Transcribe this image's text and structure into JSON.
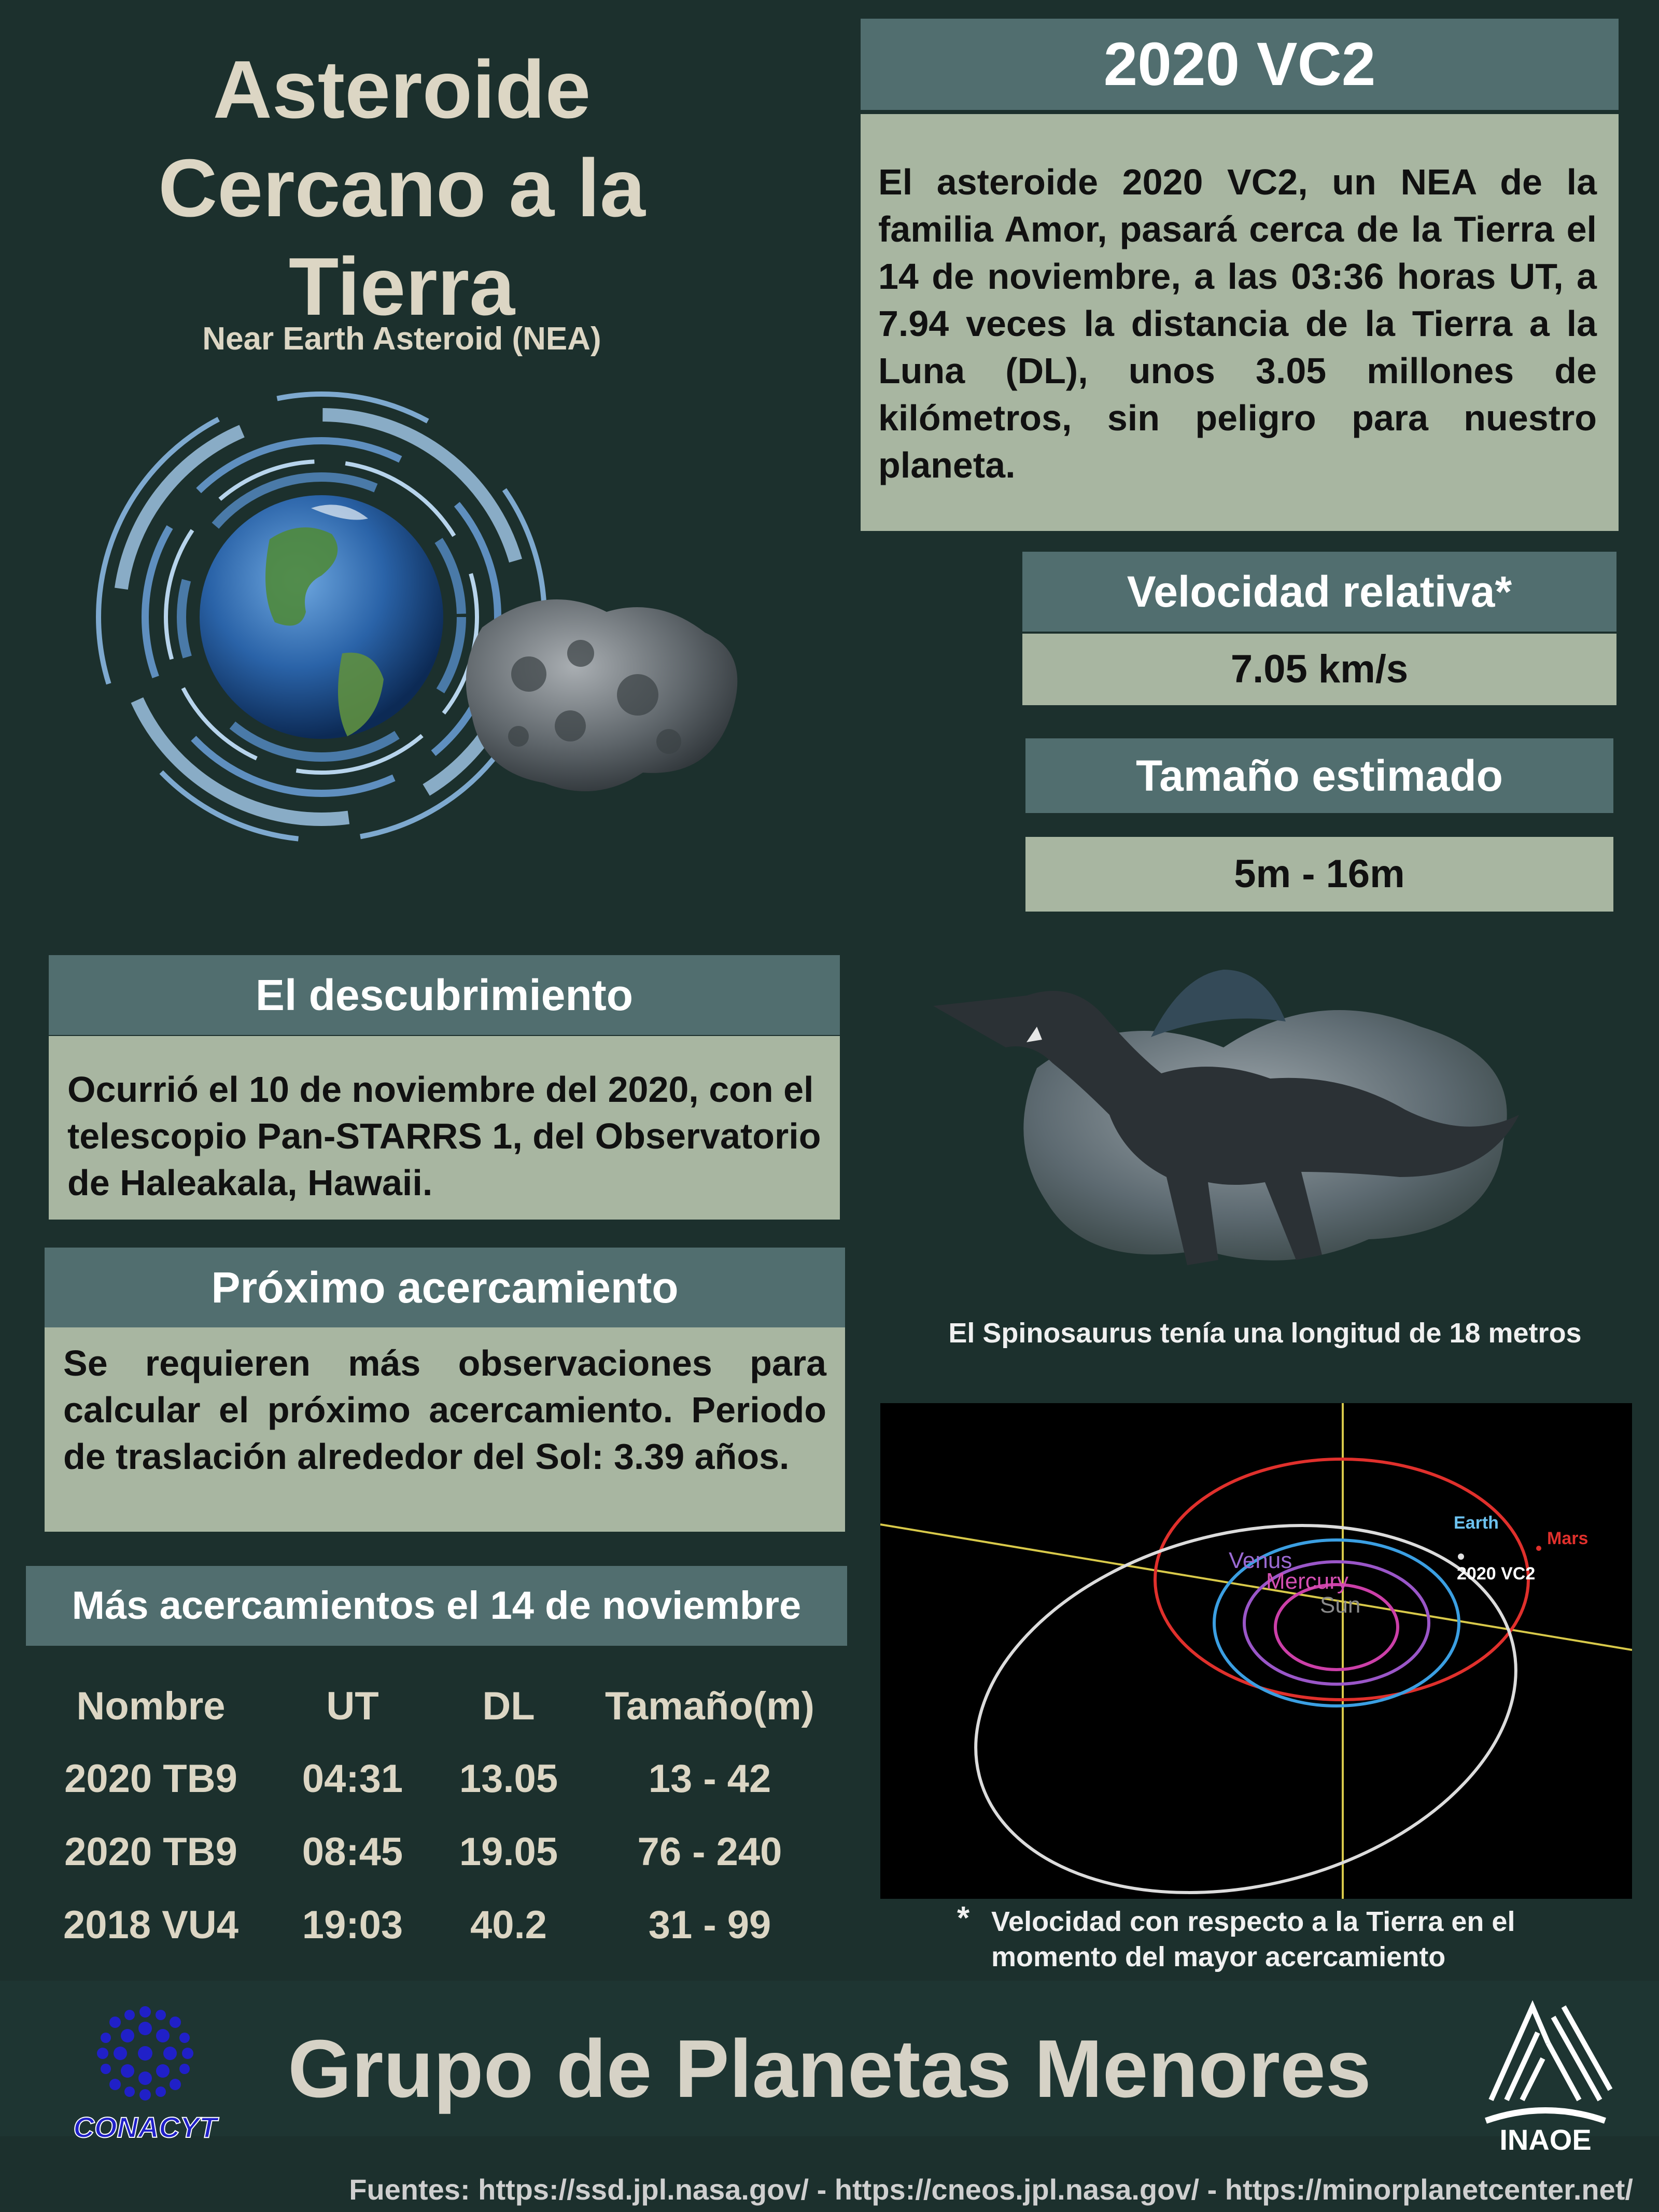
{
  "header": {
    "title_lines": [
      "Asteroide",
      "Cercano a la",
      "Tierra"
    ],
    "subtitle": "Near Earth Asteroid (NEA)"
  },
  "asteroid": {
    "name": "2020 VC2",
    "description": "El  asteroide 2020 VC2, un NEA de la familia Amor, pasará cerca de la Tierra el 14 de noviembre, a las 03:36 horas UT, a 7.94 veces la distancia de la Tierra a la Luna (DL), unos 3.05 millones de kilómetros, sin peligro para nuestro planeta."
  },
  "velocity": {
    "label": "Velocidad relativa*",
    "value": "7.05 km/s"
  },
  "size": {
    "label": "Tamaño estimado",
    "value": "5m - 16m"
  },
  "discovery": {
    "label": "El descubrimiento",
    "text": "Ocurrió el 10 de noviembre del 2020, con el telescopio Pan-STARRS 1, del Observatorio de Haleakala, Hawaii."
  },
  "next_approach": {
    "label": "Próximo acercamiento",
    "text": "Se requieren más observaciones para calcular el próximo acercamiento. Periodo de traslación alrededor del Sol: 3.39 años."
  },
  "spinosaurus_caption": "El Spinosaurus tenía una longitud de 18 metros",
  "orbit_labels": {
    "earth": "Earth",
    "mars": "Mars",
    "venus": "Venus",
    "mercury": "Mercury",
    "sun": "Sun",
    "asteroid": "2020 VC2"
  },
  "footnote": {
    "star": "*",
    "text_line1": "Velocidad con respecto a la Tierra en el",
    "text_line2": "momento del mayor acercamiento"
  },
  "table": {
    "title": "Más acercamientos el 14 de noviembre",
    "columns": [
      "Nombre",
      "UT",
      "DL",
      "Tamaño(m)"
    ],
    "rows": [
      [
        "2020 TB9",
        "04:31",
        "13.05",
        "13 - 42"
      ],
      [
        "2020 TB9",
        "08:45",
        "19.05",
        "76 - 240"
      ],
      [
        "2018 VU4",
        "19:03",
        "40.2",
        "31 - 99"
      ]
    ]
  },
  "footer": {
    "title": "Grupo de Planetas Menores",
    "left_logo_text": "CONACYT",
    "right_logo_text": "INAOE",
    "sources": "Fuentes: https://ssd.jpl.nasa.gov/ - https://cneos.jpl.nasa.gov/ -  https://minorplanetcenter.net/"
  },
  "colors": {
    "background": "#1c302d",
    "header_bar": "#516e6f",
    "panel": "#a8b6a1",
    "title_text": "#dcd6c4"
  }
}
